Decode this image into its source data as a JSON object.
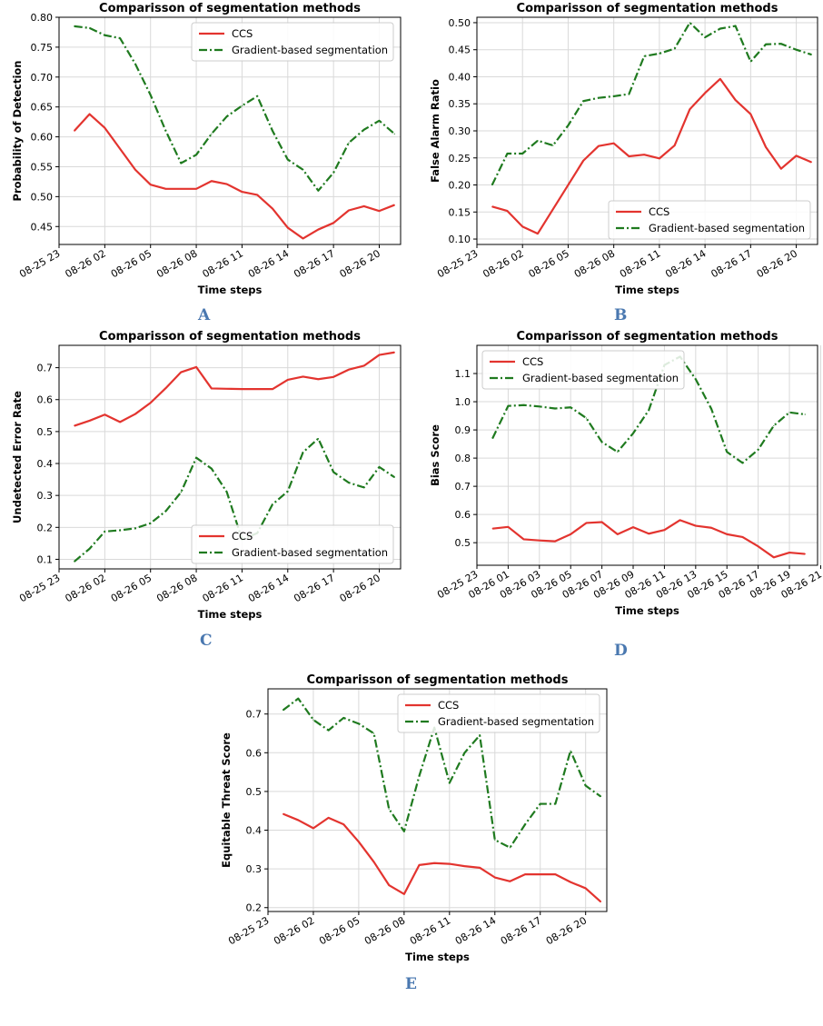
{
  "figure": {
    "colors": {
      "ccs": "#e3342f",
      "gradient": "#1f7a1f",
      "grid": "#d9d9d9"
    }
  },
  "chart_data": [
    {
      "panel": "A",
      "type": "line",
      "title": "Comparisson of segmentation methods",
      "xlabel": "Time steps",
      "ylabel": "Probability of Detection",
      "xticks": [
        "08-25 23",
        "08-26 02",
        "08-26 05",
        "08-26 08",
        "08-26 11",
        "08-26 14",
        "08-26 17",
        "08-26 20"
      ],
      "ylim": [
        0.42,
        0.8
      ],
      "yticks": [
        0.45,
        0.5,
        0.55,
        0.6,
        0.65,
        0.7,
        0.75,
        0.8
      ],
      "x": [
        1,
        2,
        3,
        4,
        5,
        6,
        7,
        8,
        9,
        10,
        11,
        12,
        13,
        14,
        15,
        16,
        17,
        18,
        19,
        20,
        21,
        22
      ],
      "legend_position": "top-right",
      "series": [
        {
          "name": "CCS",
          "style": "solid",
          "values": [
            0.61,
            0.638,
            0.615,
            0.58,
            0.545,
            0.52,
            0.513,
            0.513,
            0.513,
            0.526,
            0.521,
            0.508,
            0.503,
            0.48,
            0.448,
            0.43,
            0.445,
            0.456,
            0.477,
            0.484,
            0.476,
            0.486
          ]
        },
        {
          "name": "Gradient-based segmentation",
          "style": "dashdot",
          "values": [
            0.785,
            0.782,
            0.77,
            0.765,
            0.722,
            0.67,
            0.61,
            0.556,
            0.57,
            0.605,
            0.634,
            0.652,
            0.668,
            0.61,
            0.562,
            0.545,
            0.51,
            0.54,
            0.59,
            0.612,
            0.627,
            0.605
          ]
        }
      ]
    },
    {
      "panel": "B",
      "type": "line",
      "title": "Comparisson of segmentation methods",
      "xlabel": "Time steps",
      "ylabel": "False Alarm Ratio",
      "xticks": [
        "08-25 23",
        "08-26 02",
        "08-26 05",
        "08-26 08",
        "08-26 11",
        "08-26 14",
        "08-26 17",
        "08-26 20"
      ],
      "ylim": [
        0.09,
        0.51
      ],
      "yticks": [
        0.1,
        0.15,
        0.2,
        0.25,
        0.3,
        0.35,
        0.4,
        0.45,
        0.5
      ],
      "x": [
        1,
        2,
        3,
        4,
        5,
        6,
        7,
        8,
        9,
        10,
        11,
        12,
        13,
        14,
        15,
        16,
        17,
        18,
        19,
        20,
        21,
        22
      ],
      "legend_position": "lower-right",
      "series": [
        {
          "name": "CCS",
          "style": "solid",
          "values": [
            0.16,
            0.152,
            0.123,
            0.11,
            0.155,
            0.2,
            0.245,
            0.272,
            0.277,
            0.253,
            0.256,
            0.249,
            0.273,
            0.34,
            0.37,
            0.396,
            0.357,
            0.331,
            0.27,
            0.23,
            0.254,
            0.242
          ]
        },
        {
          "name": "Gradient-based segmentation",
          "style": "dashdot",
          "values": [
            0.2,
            0.258,
            0.258,
            0.282,
            0.273,
            0.31,
            0.355,
            0.361,
            0.364,
            0.368,
            0.438,
            0.443,
            0.452,
            0.5,
            0.473,
            0.489,
            0.494,
            0.428,
            0.46,
            0.461,
            0.45,
            0.441
          ]
        }
      ]
    },
    {
      "panel": "C",
      "type": "line",
      "title": "Comparisson of segmentation methods",
      "xlabel": "Time steps",
      "ylabel": "Undetected Error Rate",
      "xticks": [
        "08-25 23",
        "08-26 02",
        "08-26 05",
        "08-26 08",
        "08-26 11",
        "08-26 14",
        "08-26 17",
        "08-26 20"
      ],
      "ylim": [
        0.07,
        0.77
      ],
      "yticks": [
        0.1,
        0.2,
        0.3,
        0.4,
        0.5,
        0.6,
        0.7
      ],
      "x": [
        1,
        2,
        3,
        4,
        5,
        6,
        7,
        8,
        9,
        10,
        11,
        12,
        13,
        14,
        15,
        16,
        17,
        18,
        19,
        20,
        21,
        22
      ],
      "legend_position": "lower-right",
      "series": [
        {
          "name": "CCS",
          "style": "solid",
          "values": [
            0.518,
            0.534,
            0.553,
            0.53,
            0.555,
            0.59,
            0.636,
            0.686,
            0.702,
            0.635,
            0.634,
            0.633,
            0.633,
            0.633,
            0.662,
            0.672,
            0.664,
            0.671,
            0.694,
            0.706,
            0.74,
            0.748
          ]
        },
        {
          "name": "Gradient-based segmentation",
          "style": "dashdot",
          "values": [
            0.093,
            0.133,
            0.187,
            0.191,
            0.197,
            0.213,
            0.251,
            0.31,
            0.418,
            0.384,
            0.311,
            0.162,
            0.182,
            0.272,
            0.313,
            0.435,
            0.478,
            0.373,
            0.34,
            0.325,
            0.389,
            0.357
          ]
        }
      ]
    },
    {
      "panel": "D",
      "type": "line",
      "title": "Comparisson of segmentation methods",
      "xlabel": "Time steps",
      "ylabel": "Bias Score",
      "xticks": [
        "08-25 23",
        "08-26 01",
        "08-26 03",
        "08-26 05",
        "08-26 07",
        "08-26 09",
        "08-26 11",
        "08-26 13",
        "08-26 15",
        "08-26 17",
        "08-26 19",
        "08-26 21"
      ],
      "ylim": [
        0.42,
        1.2
      ],
      "yticks": [
        0.5,
        0.6,
        0.7,
        0.8,
        0.9,
        1.0,
        1.1
      ],
      "x": [
        1,
        2,
        3,
        4,
        5,
        6,
        7,
        8,
        9,
        10,
        11,
        12,
        13,
        14,
        15,
        16,
        17,
        18,
        19,
        20,
        21
      ],
      "legend_position": "top-left",
      "series": [
        {
          "name": "CCS",
          "style": "solid",
          "values": [
            0.55,
            0.556,
            0.512,
            0.508,
            0.505,
            0.53,
            0.57,
            0.573,
            0.53,
            0.555,
            0.532,
            0.545,
            0.58,
            0.56,
            0.553,
            0.53,
            0.52,
            0.487,
            0.448,
            0.465,
            0.46
          ]
        },
        {
          "name": "Gradient-based segmentation",
          "style": "dashdot",
          "values": [
            0.87,
            0.985,
            0.988,
            0.983,
            0.976,
            0.98,
            0.942,
            0.857,
            0.822,
            0.888,
            0.97,
            1.13,
            1.16,
            1.08,
            0.975,
            0.822,
            0.783,
            0.83,
            0.915,
            0.962,
            0.955
          ]
        }
      ]
    },
    {
      "panel": "E",
      "type": "line",
      "title": "Comparisson of segmentation methods",
      "xlabel": "Time steps",
      "ylabel": "Equitable Threat Score",
      "xticks": [
        "08-25 23",
        "08-26 02",
        "08-26 05",
        "08-26 08",
        "08-26 11",
        "08-26 14",
        "08-26 17",
        "08-26 20"
      ],
      "ylim": [
        0.19,
        0.765
      ],
      "yticks": [
        0.2,
        0.3,
        0.4,
        0.5,
        0.6,
        0.7
      ],
      "x": [
        1,
        2,
        3,
        4,
        5,
        6,
        7,
        8,
        9,
        10,
        11,
        12,
        13,
        14,
        15,
        16,
        17,
        18,
        19,
        20,
        21,
        22
      ],
      "legend_position": "top-right",
      "series": [
        {
          "name": "CCS",
          "style": "solid",
          "values": [
            0.442,
            0.426,
            0.405,
            0.432,
            0.415,
            0.37,
            0.318,
            0.258,
            0.235,
            0.31,
            0.315,
            0.313,
            0.307,
            0.303,
            0.278,
            0.268,
            0.286,
            0.286,
            0.286,
            0.266,
            0.25,
            0.215
          ]
        },
        {
          "name": "Gradient-based segmentation",
          "style": "dashdot",
          "values": [
            0.71,
            0.74,
            0.685,
            0.658,
            0.69,
            0.675,
            0.65,
            0.455,
            0.397,
            0.54,
            0.665,
            0.522,
            0.6,
            0.645,
            0.375,
            0.355,
            0.415,
            0.468,
            0.468,
            0.605,
            0.515,
            0.487
          ]
        }
      ]
    }
  ]
}
